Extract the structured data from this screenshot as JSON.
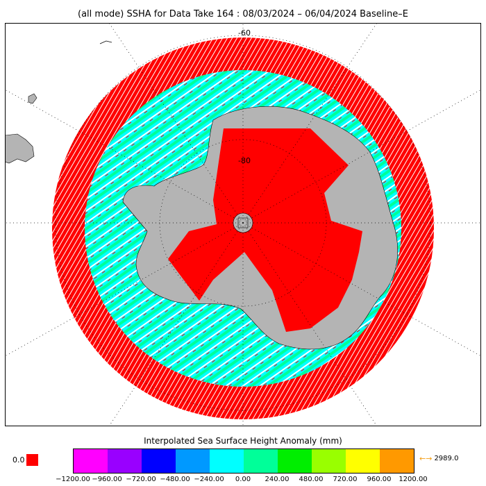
{
  "title": "(all mode) SSHA for Data Take 164 : 08/03/2024 – 06/04/2024 Baseline–E",
  "map": {
    "projection": "south-polar-stereographic",
    "lat_labels": [
      "-60",
      "-80"
    ],
    "colors": {
      "land": "#b4b4b4",
      "out_of_range": "#ff0000",
      "graticule": "#000000"
    }
  },
  "colorbar": {
    "title": "Interpolated Sea Surface Height Anomaly (mm)",
    "colors": [
      "#ff00ff",
      "#9900ff",
      "#0000ff",
      "#0099ff",
      "#00ffff",
      "#00ff99",
      "#00ee00",
      "#99ff00",
      "#ffff00",
      "#ff9900"
    ],
    "ticks": [
      "−1200.00",
      "−960.00",
      "−720.00",
      "−480.00",
      "−240.00",
      "0.00",
      "240.00",
      "480.00",
      "720.00",
      "960.00",
      "1200.00"
    ],
    "under_label": "0.0",
    "under_color": "#ff0000",
    "over_label": "2989.0",
    "over_arrow": "←→",
    "over_color": "#f39c12"
  }
}
